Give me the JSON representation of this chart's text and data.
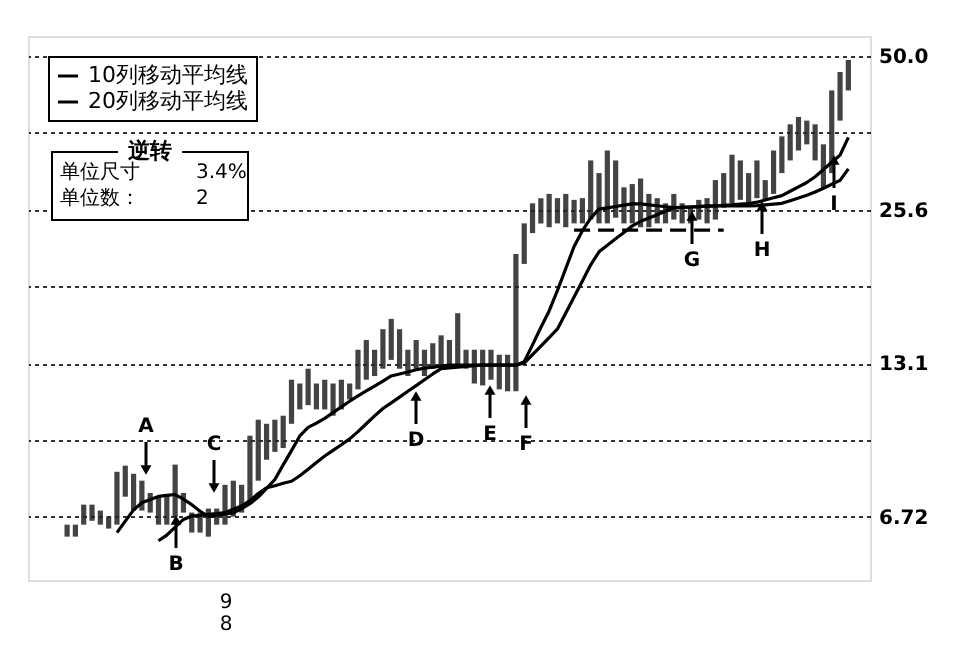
{
  "chart_data": {
    "type": "line",
    "log": "y",
    "grid": "y",
    "legend": "top left",
    "marker": "none",
    "tick_labels": "y",
    "categories": [
      null,
      null,
      null,
      null,
      null,
      null,
      null,
      null,
      null,
      null,
      null,
      null,
      null,
      null,
      null,
      null,
      null,
      null,
      null,
      null,
      null,
      null,
      null,
      null,
      null,
      null,
      null,
      null,
      null,
      null,
      null,
      null,
      null,
      null,
      null,
      null,
      null,
      null,
      null,
      null,
      null,
      null,
      null,
      null,
      null,
      null,
      null,
      null,
      null,
      null,
      null,
      null,
      null,
      null,
      null,
      null,
      null,
      null,
      null,
      null,
      null,
      null,
      null,
      null,
      null,
      null,
      null,
      null,
      null,
      null,
      null,
      null,
      null,
      null,
      null,
      null,
      null,
      null,
      null,
      null,
      null,
      null,
      null,
      null,
      null,
      null,
      null,
      null,
      null,
      null,
      null,
      null,
      null,
      null,
      null
    ],
    "ylim": [
      5.1,
      54.5
    ],
    "yticks": [
      6.72,
      {
        "value": 9.39,
        "label": null
      },
      13.1,
      {
        "value": 18.3,
        "label": null
      },
      25.6,
      {
        "value": 35.8,
        "label": null
      },
      {
        "value": 50,
        "label": "50.0"
      }
    ],
    "series": [
      {
        "type": "bar",
        "color": "#222222",
        "base": [
          6.16,
          6.16,
          6.49,
          6.6,
          6.49,
          6.38,
          6.49,
          7.33,
          6.9,
          6.9,
          6.84,
          6.49,
          6.49,
          6.72,
          6.84,
          6.27,
          6.27,
          6.16,
          6.49,
          6.49,
          6.72,
          6.84,
          7.2,
          7.86,
          8.61,
          8.91,
          9.06,
          10.07,
          10.72,
          10.92,
          10.72,
          10.72,
          10.43,
          10.72,
          11.2,
          11.7,
          12.2,
          12.4,
          12.8,
          13.3,
          12.8,
          12.4,
          12.8,
          12.4,
          12.8,
          13.0,
          13.0,
          13.0,
          12.8,
          12.0,
          11.9,
          12.2,
          11.7,
          11.6,
          11.6,
          20.2,
          23.1,
          24.1,
          23.7,
          24.1,
          23.7,
          24.1,
          24.1,
          24.5,
          24.1,
          24.1,
          24.7,
          24.1,
          24.1,
          23.7,
          23.7,
          24.1,
          24.1,
          24.5,
          24.1,
          24.1,
          24.5,
          24.1,
          24.5,
          25.8,
          26.3,
          26.7,
          26.3,
          26.9,
          26.7,
          27.4,
          30.0,
          31.7,
          33.1,
          34.0,
          31.7,
          28.2,
          30.0,
          37.7,
          43.0
        ],
        "values": [
          0.33,
          0.33,
          0.59,
          0.48,
          0.41,
          0.34,
          1.68,
          1.06,
          1.2,
          0.96,
          0.61,
          0.84,
          0.91,
          1.71,
          0.61,
          0.57,
          0.57,
          0.8,
          0.47,
          1.23,
          1.14,
          0.88,
          2.36,
          2.39,
          1.46,
          1.34,
          1.37,
          2.13,
          1.28,
          1.88,
          1.28,
          1.48,
          1.57,
          1.48,
          0.8,
          2.2,
          2.3,
          1.5,
          2.4,
          2.6,
          2.4,
          1.5,
          1.7,
          1.5,
          1.5,
          1.8,
          1.5,
          3.3,
          1.1,
          1.9,
          2.0,
          1.7,
          1.9,
          2.0,
          9.5,
          3.9,
          3.2,
          2.8,
          3.7,
          2.8,
          3.7,
          2.6,
          2.8,
          7.2,
          5.9,
          9.0,
          7.0,
          4.1,
          4.5,
          5.6,
          3.7,
          2.8,
          2.2,
          2.9,
          2.2,
          1.7,
          2.2,
          2.8,
          4.6,
          4.2,
          6.2,
          5.0,
          3.7,
          4.8,
          2.4,
          5.7,
          5.2,
          5.4,
          5.2,
          3.7,
          5.4,
          5.8,
          13.0,
          8.9,
          6.1
        ]
      },
      {
        "name": "10列移动平均线",
        "color": "#000000",
        "values": [
          null,
          null,
          null,
          null,
          null,
          null,
          6.27,
          6.59,
          6.92,
          7.14,
          7.24,
          7.34,
          7.37,
          7.4,
          7.25,
          7.08,
          6.88,
          6.73,
          6.76,
          6.8,
          6.83,
          6.96,
          7.11,
          7.32,
          7.6,
          7.9,
          8.42,
          8.96,
          9.55,
          9.91,
          10.1,
          10.31,
          10.57,
          10.84,
          11.11,
          11.37,
          11.62,
          11.87,
          12.13,
          12.4,
          12.51,
          12.62,
          12.74,
          12.83,
          12.88,
          12.94,
          13.0,
          13.0,
          13.0,
          13.0,
          13.0,
          13.0,
          13.0,
          13.0,
          13.0,
          13.2,
          14.2,
          15.31,
          16.46,
          18.0,
          19.8,
          21.79,
          23.34,
          24.65,
          25.65,
          25.79,
          25.94,
          26.09,
          26.24,
          26.23,
          26.13,
          26.02,
          25.91,
          25.81,
          25.84,
          25.88,
          25.92,
          25.97,
          26.01,
          26.08,
          26.14,
          26.2,
          26.27,
          26.43,
          26.68,
          26.94,
          27.2,
          27.72,
          28.26,
          28.8,
          29.53,
          30.47,
          31.44,
          32.44,
          35.05
        ]
      },
      {
        "name": "20列移动平均线",
        "color": "#000000",
        "values": [
          null,
          null,
          null,
          null,
          null,
          null,
          null,
          null,
          null,
          null,
          null,
          6.05,
          6.2,
          6.42,
          6.64,
          6.74,
          6.76,
          6.79,
          6.81,
          6.84,
          6.94,
          7.04,
          7.21,
          7.43,
          7.62,
          7.69,
          7.77,
          7.84,
          8.03,
          8.26,
          8.51,
          8.75,
          8.97,
          9.19,
          9.43,
          9.73,
          10.07,
          10.42,
          10.76,
          11.03,
          11.31,
          11.6,
          11.89,
          12.2,
          12.51,
          12.8,
          12.85,
          12.89,
          12.93,
          12.97,
          13.0,
          13.0,
          13.0,
          13.0,
          13.0,
          13.12,
          13.61,
          14.12,
          14.66,
          15.22,
          16.32,
          17.49,
          18.76,
          20.12,
          21.29,
          21.9,
          22.53,
          23.17,
          23.84,
          24.32,
          24.67,
          25.03,
          25.4,
          25.77,
          25.84,
          25.88,
          25.92,
          25.97,
          26.0,
          26.0,
          26.0,
          26.0,
          26.0,
          26.04,
          26.13,
          26.21,
          26.3,
          26.6,
          26.92,
          27.23,
          27.62,
          28.09,
          28.58,
          29.07,
          30.56
        ]
      },
      {
        "color": "#000000",
        "line_style": "dashed",
        "values": [
          null,
          null,
          null,
          null,
          null,
          null,
          null,
          null,
          null,
          null,
          null,
          null,
          null,
          null,
          null,
          null,
          null,
          null,
          null,
          null,
          null,
          null,
          null,
          null,
          null,
          null,
          null,
          null,
          null,
          null,
          null,
          null,
          null,
          null,
          null,
          null,
          null,
          null,
          null,
          null,
          null,
          null,
          null,
          null,
          null,
          null,
          null,
          null,
          null,
          null,
          null,
          null,
          null,
          null,
          null,
          null,
          null,
          null,
          null,
          null,
          null,
          23.4,
          23.4,
          23.4,
          23.4,
          23.4,
          23.4,
          23.4,
          23.4,
          23.4,
          23.4,
          23.4,
          23.4,
          23.4,
          23.4,
          23.4,
          23.4,
          23.4,
          23.4,
          23.4,
          null,
          null,
          null,
          null,
          null,
          null,
          null,
          null,
          null,
          null,
          null,
          null,
          null,
          null,
          null
        ]
      }
    ],
    "annotations": [
      "逆转",
      "单位尺寸",
      "3.4%",
      "单位数：",
      "2",
      "9\n8",
      "A",
      "B",
      "C",
      "D",
      "E",
      "F",
      "G",
      "H",
      "I"
    ]
  }
}
